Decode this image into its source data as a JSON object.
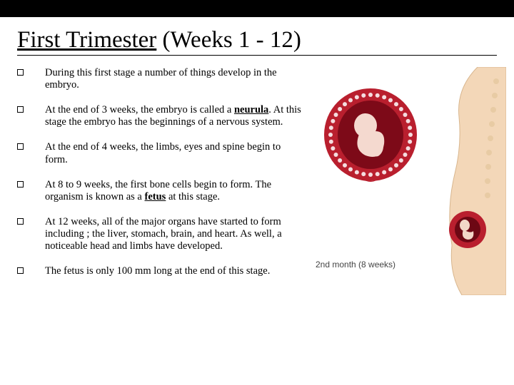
{
  "topbar_color": "#000000",
  "title": {
    "underlined": "First Trimester",
    "rest": " (Weeks 1 - 12)"
  },
  "bullets": [
    {
      "html": "During this first stage a number of things develop in the embryo."
    },
    {
      "html": "At the end of 3 weeks, the embryo is called a <span class='b u'>neurula</span>. At this stage the embryo has the beginnings of a nervous system."
    },
    {
      "html": "At the end of 4 weeks, the limbs, eyes and spine begin to form."
    },
    {
      "html": "At 8 to 9 weeks, the first bone cells begin to form.  The organism is known as a <span class='b u'>fetus</span> at this stage."
    },
    {
      "html": "At 12 weeks, all of the major organs have started to form including ; the liver, stomach, brain, and heart.  As well, a noticeable head and limbs have developed."
    },
    {
      "html": "The fetus is only 100 mm long at the end of this stage."
    }
  ],
  "image_caption": "2nd month (8 weeks)",
  "embryo_svg": {
    "outer_fill": "#b91f2e",
    "dots_fill": "#ffffff",
    "inner_fill": "#7d0a18",
    "fetus_fill": "#f4d9cf"
  },
  "sideview_svg": {
    "skin_fill": "#f3d7b8",
    "skin_stroke": "#d8b68e",
    "spine_stroke": "#e8cba4",
    "womb_fill": "#b91f2e",
    "womb_inner": "#6d0814",
    "fetus_fill": "#f2d6c8"
  }
}
